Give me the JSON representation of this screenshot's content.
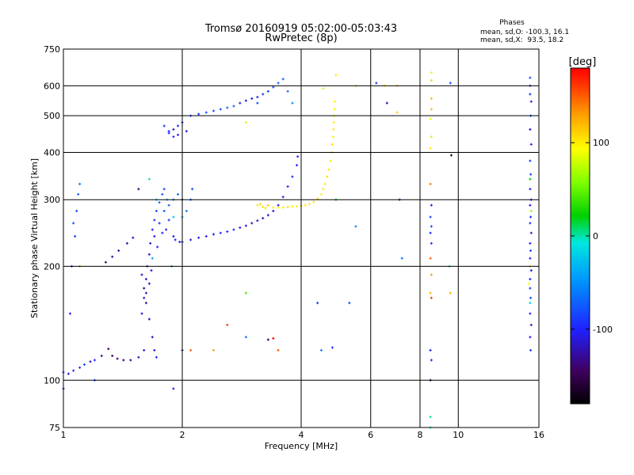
{
  "title_line1": "Tromsø 20160919 05:02:00-05:03:43",
  "title_line2": "RwPretec (8p)",
  "phases": {
    "heading": "Phases",
    "line_o": "mean, sd,O: -100.3, 16.1",
    "line_x": "mean, sd,X:  93.5, 18.2"
  },
  "chart_data": {
    "type": "scatter",
    "xlabel": "Frequency [MHz]",
    "ylabel": "Stationary phase Virtual Height [km]",
    "x_scale": "log",
    "y_scale": "log",
    "xlim": [
      1,
      16
    ],
    "ylim": [
      75,
      750
    ],
    "x_ticks": [
      1,
      2,
      4,
      6,
      8,
      10,
      16
    ],
    "x_tick_labels": [
      "1",
      "2",
      "4",
      "6",
      "8",
      "10",
      "16"
    ],
    "y_ticks": [
      75,
      100,
      200,
      300,
      400,
      500,
      600,
      750
    ],
    "y_tick_labels": [
      "75",
      "100",
      "200",
      "300",
      "400",
      "500",
      "600",
      "750"
    ],
    "grid": true,
    "colorbar": {
      "label": "[deg]",
      "range": [
        -180,
        180
      ],
      "ticks": [
        100,
        0,
        -100
      ],
      "tick_labels": [
        "100",
        "0",
        "-100"
      ]
    },
    "series": [
      {
        "points": [
          [
            1.0,
            105,
            -100
          ],
          [
            1.03,
            104,
            -110
          ],
          [
            1.06,
            106,
            -90
          ],
          [
            1.1,
            108,
            -95
          ],
          [
            1.13,
            110,
            -85
          ],
          [
            1.17,
            112,
            -120
          ],
          [
            1.2,
            113,
            -100
          ],
          [
            1.25,
            116,
            -130
          ],
          [
            1.3,
            121,
            -140
          ],
          [
            1.33,
            116,
            -145
          ],
          [
            1.37,
            114,
            -140
          ],
          [
            1.42,
            113,
            -135
          ],
          [
            1.48,
            113,
            -130
          ],
          [
            1.55,
            115,
            -120
          ],
          [
            1.6,
            120,
            -110
          ],
          [
            1.05,
            200,
            -100
          ],
          [
            1.07,
            240,
            -90
          ],
          [
            1.08,
            280,
            -80
          ],
          [
            1.09,
            310,
            -70
          ],
          [
            1.1,
            330,
            -60
          ],
          [
            1.04,
            150,
            -100
          ],
          [
            1.06,
            260,
            -80
          ],
          [
            1.28,
            205,
            -140
          ],
          [
            1.33,
            212,
            -130
          ],
          [
            1.38,
            220,
            -120
          ],
          [
            1.45,
            230,
            -120
          ],
          [
            1.5,
            238,
            -110
          ],
          [
            1.58,
            150,
            -110
          ],
          [
            1.6,
            165,
            -110
          ],
          [
            1.62,
            185,
            -115
          ],
          [
            1.63,
            200,
            -120
          ],
          [
            1.65,
            215,
            -115
          ],
          [
            1.66,
            230,
            -110
          ],
          [
            1.68,
            250,
            -100
          ],
          [
            1.7,
            265,
            -90
          ],
          [
            1.72,
            280,
            -80
          ],
          [
            1.75,
            295,
            -70
          ],
          [
            1.78,
            310,
            -75
          ],
          [
            1.8,
            320,
            -85
          ],
          [
            1.65,
            180,
            -120
          ],
          [
            1.7,
            240,
            -100
          ],
          [
            1.75,
            260,
            -95
          ],
          [
            1.8,
            280,
            -80
          ],
          [
            1.85,
            290,
            -70
          ],
          [
            1.9,
            300,
            -60
          ],
          [
            1.95,
            310,
            -70
          ],
          [
            2.0,
            300,
            -80
          ],
          [
            2.05,
            280,
            -60
          ],
          [
            2.1,
            300,
            -70
          ],
          [
            2.12,
            320,
            -80
          ],
          [
            1.82,
            250,
            -100
          ],
          [
            1.9,
            240,
            -110
          ],
          [
            1.62,
            170,
            -120
          ],
          [
            1.67,
            195,
            -110
          ],
          [
            1.73,
            225,
            -100
          ],
          [
            1.78,
            245,
            -95
          ],
          [
            1.85,
            265,
            -90
          ],
          [
            1.92,
            235,
            -100
          ],
          [
            1.97,
            232,
            -105
          ],
          [
            2.0,
            232,
            -110
          ],
          [
            2.1,
            235,
            -110
          ],
          [
            2.2,
            238,
            -110
          ],
          [
            2.3,
            240,
            -105
          ],
          [
            2.4,
            243,
            -105
          ],
          [
            2.5,
            245,
            -100
          ],
          [
            2.6,
            247,
            -100
          ],
          [
            2.7,
            250,
            -100
          ],
          [
            2.8,
            253,
            -105
          ],
          [
            2.9,
            256,
            -110
          ],
          [
            3.0,
            260,
            -115
          ],
          [
            3.1,
            264,
            -120
          ],
          [
            3.2,
            268,
            -120
          ],
          [
            3.3,
            273,
            -120
          ],
          [
            3.4,
            280,
            -115
          ],
          [
            3.5,
            290,
            -110
          ],
          [
            3.6,
            305,
            -100
          ],
          [
            3.7,
            325,
            -100
          ],
          [
            3.8,
            345,
            -95
          ],
          [
            3.9,
            370,
            -100
          ],
          [
            3.92,
            390,
            -100
          ],
          [
            1.85,
            450,
            -100
          ],
          [
            1.9,
            460,
            -110
          ],
          [
            1.95,
            470,
            -100
          ],
          [
            2.0,
            480,
            -100
          ],
          [
            2.1,
            500,
            -90
          ],
          [
            2.2,
            505,
            -90
          ],
          [
            2.3,
            510,
            -80
          ],
          [
            2.4,
            515,
            -80
          ],
          [
            2.5,
            520,
            -80
          ],
          [
            2.6,
            525,
            -70
          ],
          [
            2.7,
            530,
            -70
          ],
          [
            2.8,
            540,
            -100
          ],
          [
            2.9,
            548,
            -110
          ],
          [
            3.0,
            555,
            -110
          ],
          [
            3.1,
            560,
            -100
          ],
          [
            3.2,
            570,
            -90
          ],
          [
            3.3,
            580,
            -90
          ],
          [
            3.4,
            595,
            -80
          ],
          [
            3.5,
            610,
            -70
          ],
          [
            3.6,
            625,
            -70
          ],
          [
            1.8,
            470,
            -90
          ],
          [
            1.85,
            455,
            -95
          ],
          [
            1.9,
            440,
            -100
          ],
          [
            1.95,
            445,
            -105
          ],
          [
            2.05,
            455,
            -110
          ],
          [
            1.58,
            190,
            -120
          ],
          [
            1.6,
            175,
            -130
          ],
          [
            1.62,
            160,
            -130
          ],
          [
            1.65,
            145,
            -125
          ],
          [
            1.68,
            130,
            -120
          ],
          [
            1.7,
            120,
            -110
          ],
          [
            1.72,
            115,
            -100
          ]
        ]
      },
      {
        "points": [
          [
            3.1,
            290,
            100
          ],
          [
            3.15,
            292,
            110
          ],
          [
            3.2,
            287,
            105
          ],
          [
            3.25,
            285,
            100
          ],
          [
            3.3,
            290,
            110
          ],
          [
            3.4,
            286,
            100
          ],
          [
            3.5,
            286,
            95
          ],
          [
            3.6,
            286,
            100
          ],
          [
            3.7,
            287,
            105
          ],
          [
            3.8,
            288,
            100
          ],
          [
            3.9,
            288,
            100
          ],
          [
            4.0,
            289,
            105
          ],
          [
            4.1,
            290,
            100
          ],
          [
            4.2,
            292,
            100
          ],
          [
            4.3,
            296,
            105
          ],
          [
            4.4,
            302,
            100
          ],
          [
            4.5,
            310,
            100
          ],
          [
            4.55,
            320,
            100
          ],
          [
            4.6,
            330,
            100
          ],
          [
            4.65,
            345,
            105
          ],
          [
            4.7,
            360,
            100
          ],
          [
            4.75,
            380,
            100
          ],
          [
            4.78,
            400,
            100
          ],
          [
            4.8,
            420,
            105
          ],
          [
            4.82,
            440,
            100
          ],
          [
            4.83,
            460,
            100
          ],
          [
            4.84,
            480,
            100
          ],
          [
            4.85,
            500,
            100
          ],
          [
            4.86,
            520,
            100
          ],
          [
            4.87,
            545,
            100
          ],
          [
            4.9,
            640,
            100
          ],
          [
            5.5,
            600,
            110
          ],
          [
            7.0,
            600,
            110
          ],
          [
            7.0,
            510,
            110
          ],
          [
            6.5,
            600,
            110
          ]
        ]
      },
      {
        "points": [
          [
            1.65,
            340,
            0
          ],
          [
            1.68,
            210,
            -40
          ],
          [
            1.72,
            300,
            -20
          ],
          [
            1.83,
            300,
            -30
          ],
          [
            1.9,
            270,
            -20
          ],
          [
            2.0,
            270,
            -30
          ],
          [
            3.8,
            540,
            -50
          ],
          [
            1.88,
            200,
            -40
          ],
          [
            8.5,
            75,
            0
          ],
          [
            9.5,
            200,
            0
          ],
          [
            15.2,
            340,
            20
          ],
          [
            15.3,
            280,
            60
          ],
          [
            15.2,
            200,
            120
          ],
          [
            15.1,
            180,
            90
          ],
          [
            15.2,
            160,
            -20
          ],
          [
            1.1,
            200,
            50
          ],
          [
            4.55,
            590,
            80
          ],
          [
            4.9,
            300,
            20
          ],
          [
            2.9,
            480,
            80
          ]
        ]
      },
      {
        "points": [
          [
            8.55,
            650,
            100
          ],
          [
            8.55,
            620,
            110
          ],
          [
            8.55,
            555,
            120
          ],
          [
            8.55,
            520,
            120
          ],
          [
            8.5,
            490,
            90
          ],
          [
            8.55,
            440,
            80
          ],
          [
            8.5,
            410,
            100
          ],
          [
            8.5,
            330,
            140
          ],
          [
            8.55,
            290,
            -100
          ],
          [
            8.5,
            270,
            -90
          ],
          [
            8.55,
            255,
            -80
          ],
          [
            8.5,
            245,
            -100
          ],
          [
            8.55,
            230,
            -90
          ],
          [
            8.5,
            210,
            150
          ],
          [
            8.55,
            190,
            130
          ],
          [
            8.5,
            170,
            120
          ],
          [
            8.55,
            165,
            160
          ],
          [
            8.5,
            120,
            -100
          ],
          [
            8.55,
            113,
            -100
          ],
          [
            8.5,
            100,
            -150
          ],
          [
            8.5,
            80,
            0
          ],
          [
            9.55,
            170,
            120
          ],
          [
            9.6,
            393,
            -160
          ],
          [
            9.55,
            610,
            -80
          ]
        ]
      },
      {
        "points": [
          [
            15.2,
            630,
            -80
          ],
          [
            15.2,
            600,
            -100
          ],
          [
            15.2,
            570,
            -90
          ],
          [
            15.3,
            545,
            -100
          ],
          [
            15.25,
            500,
            -80
          ],
          [
            15.2,
            460,
            -110
          ],
          [
            15.3,
            420,
            -100
          ],
          [
            15.2,
            380,
            -90
          ],
          [
            15.25,
            350,
            -80
          ],
          [
            15.2,
            320,
            -100
          ],
          [
            15.3,
            300,
            -100
          ],
          [
            15.2,
            290,
            -110
          ],
          [
            15.25,
            270,
            -100
          ],
          [
            15.2,
            260,
            -90
          ],
          [
            15.3,
            245,
            -110
          ],
          [
            15.2,
            230,
            -100
          ],
          [
            15.25,
            220,
            -90
          ],
          [
            15.2,
            210,
            -100
          ],
          [
            15.3,
            195,
            -110
          ],
          [
            15.2,
            185,
            -100
          ],
          [
            15.2,
            175,
            -90
          ],
          [
            15.25,
            165,
            -80
          ],
          [
            15.2,
            150,
            -100
          ],
          [
            15.3,
            140,
            -110
          ],
          [
            15.2,
            130,
            -100
          ],
          [
            15.25,
            120,
            -90
          ],
          [
            7.1,
            300,
            -100
          ],
          [
            7.2,
            210,
            -60
          ],
          [
            6.6,
            540,
            -120
          ],
          [
            6.2,
            610,
            -90
          ],
          [
            5.5,
            255,
            -60
          ],
          [
            5.3,
            160,
            -80
          ],
          [
            4.4,
            160,
            -90
          ],
          [
            4.5,
            120,
            -60
          ],
          [
            4.8,
            122,
            -90
          ],
          [
            3.3,
            128,
            -140
          ],
          [
            3.5,
            120,
            150
          ],
          [
            3.4,
            129,
            180
          ],
          [
            2.6,
            140,
            160
          ],
          [
            2.4,
            120,
            130
          ],
          [
            2.0,
            120,
            -120
          ],
          [
            1.9,
            95,
            -110
          ],
          [
            2.9,
            170,
            40
          ],
          [
            2.9,
            130,
            -60
          ],
          [
            3.1,
            540,
            -80
          ],
          [
            1.0,
            95,
            -120
          ],
          [
            1.2,
            100,
            -90
          ],
          [
            2.1,
            120,
            150
          ],
          [
            1.55,
            320,
            -140
          ],
          [
            3.7,
            580,
            -60
          ]
        ]
      }
    ]
  }
}
